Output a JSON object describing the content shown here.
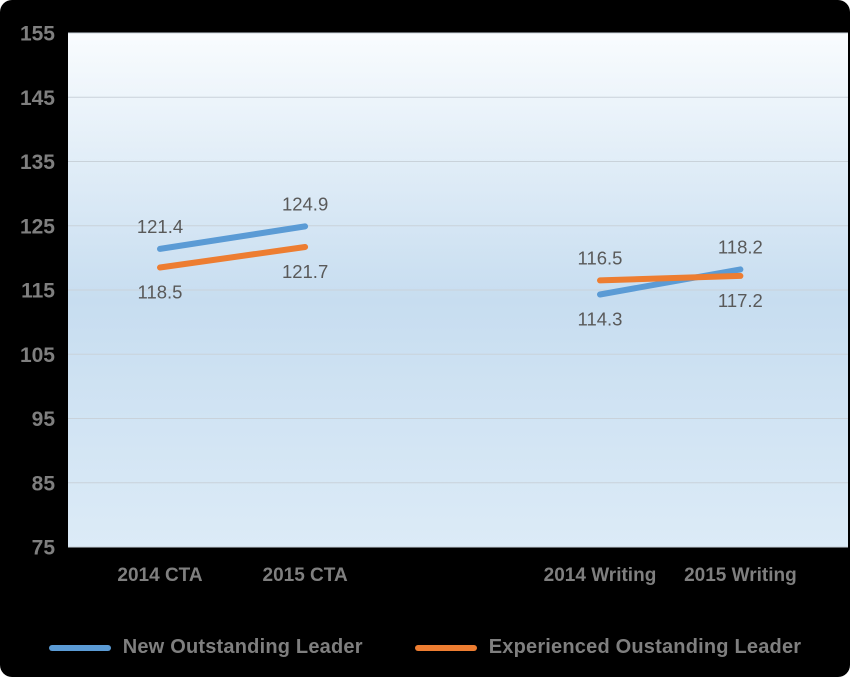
{
  "chart_data": {
    "type": "line",
    "title": "",
    "categories": [
      "2014 CTA",
      "2015 CTA",
      "2014 Writing",
      "2015 Writing"
    ],
    "series": [
      {
        "name": "New Outstanding Leader",
        "color": "#5B9BD5",
        "values": [
          121.4,
          124.9,
          114.3,
          118.2
        ],
        "label_placement": [
          "above",
          "above",
          "below",
          "above"
        ]
      },
      {
        "name": "Experienced Oustanding Leader",
        "color": "#ED7D31",
        "values": [
          118.5,
          121.7,
          116.5,
          117.2
        ],
        "label_placement": [
          "below",
          "below",
          "above",
          "below"
        ]
      }
    ],
    "segments": [
      [
        0,
        1
      ],
      [
        2,
        3
      ]
    ],
    "y_axis": {
      "min": 75,
      "max": 155,
      "step": 10,
      "tick_labels": [
        "75",
        "85",
        "95",
        "105",
        "115",
        "125",
        "135",
        "145",
        "155"
      ]
    },
    "grid": true,
    "legend_position": "bottom"
  },
  "colors": {
    "background": "#000000",
    "plot_gradient": [
      "#f9fcfe",
      "#c7ddf0",
      "#dcebf7"
    ],
    "gridline": "#c9d2da",
    "axis_text": "#7f7f7f",
    "data_label": "#595959",
    "legend_text": "#7f7f7f",
    "series_blue": "#5B9BD5",
    "series_orange": "#ED7D31"
  }
}
